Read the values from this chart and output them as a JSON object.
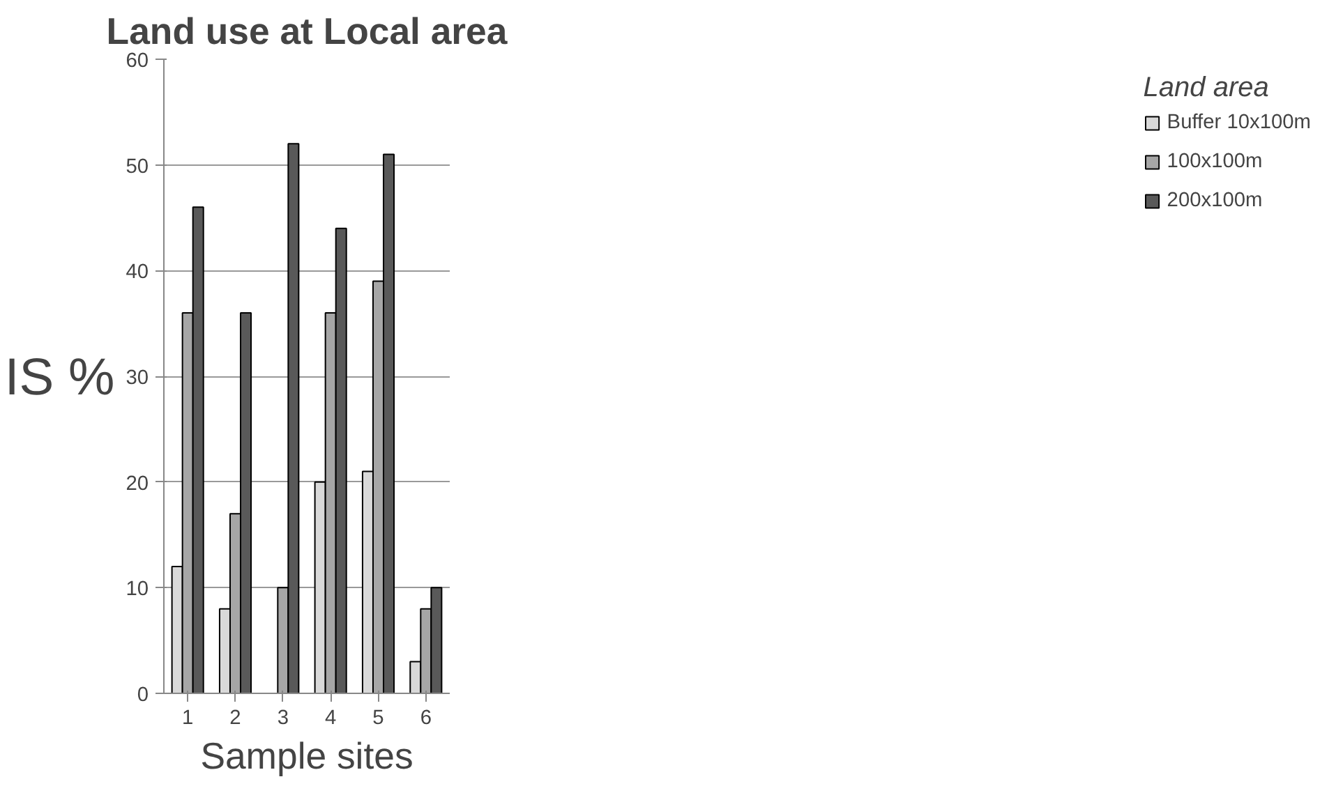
{
  "chart_data": {
    "type": "bar",
    "title": "Land use at Local area",
    "xlabel": "Sample sites",
    "ylabel": "IS %",
    "legend_title": "Land area",
    "categories": [
      "1",
      "2",
      "3",
      "4",
      "5",
      "6"
    ],
    "series": [
      {
        "name": "Buffer 10x100m",
        "color": "#d9d9d9",
        "values": [
          12,
          8,
          null,
          20,
          21,
          3
        ]
      },
      {
        "name": "100x100m",
        "color": "#a6a6a6",
        "values": [
          36,
          17,
          10,
          36,
          39,
          8
        ]
      },
      {
        "name": "200x100m",
        "color": "#595959",
        "values": [
          46,
          36,
          52,
          44,
          51,
          10
        ]
      }
    ],
    "ylim": [
      0,
      60
    ],
    "yticks": [
      0,
      10,
      20,
      30,
      40,
      50,
      60
    ],
    "grid": "y",
    "legend": "right"
  }
}
